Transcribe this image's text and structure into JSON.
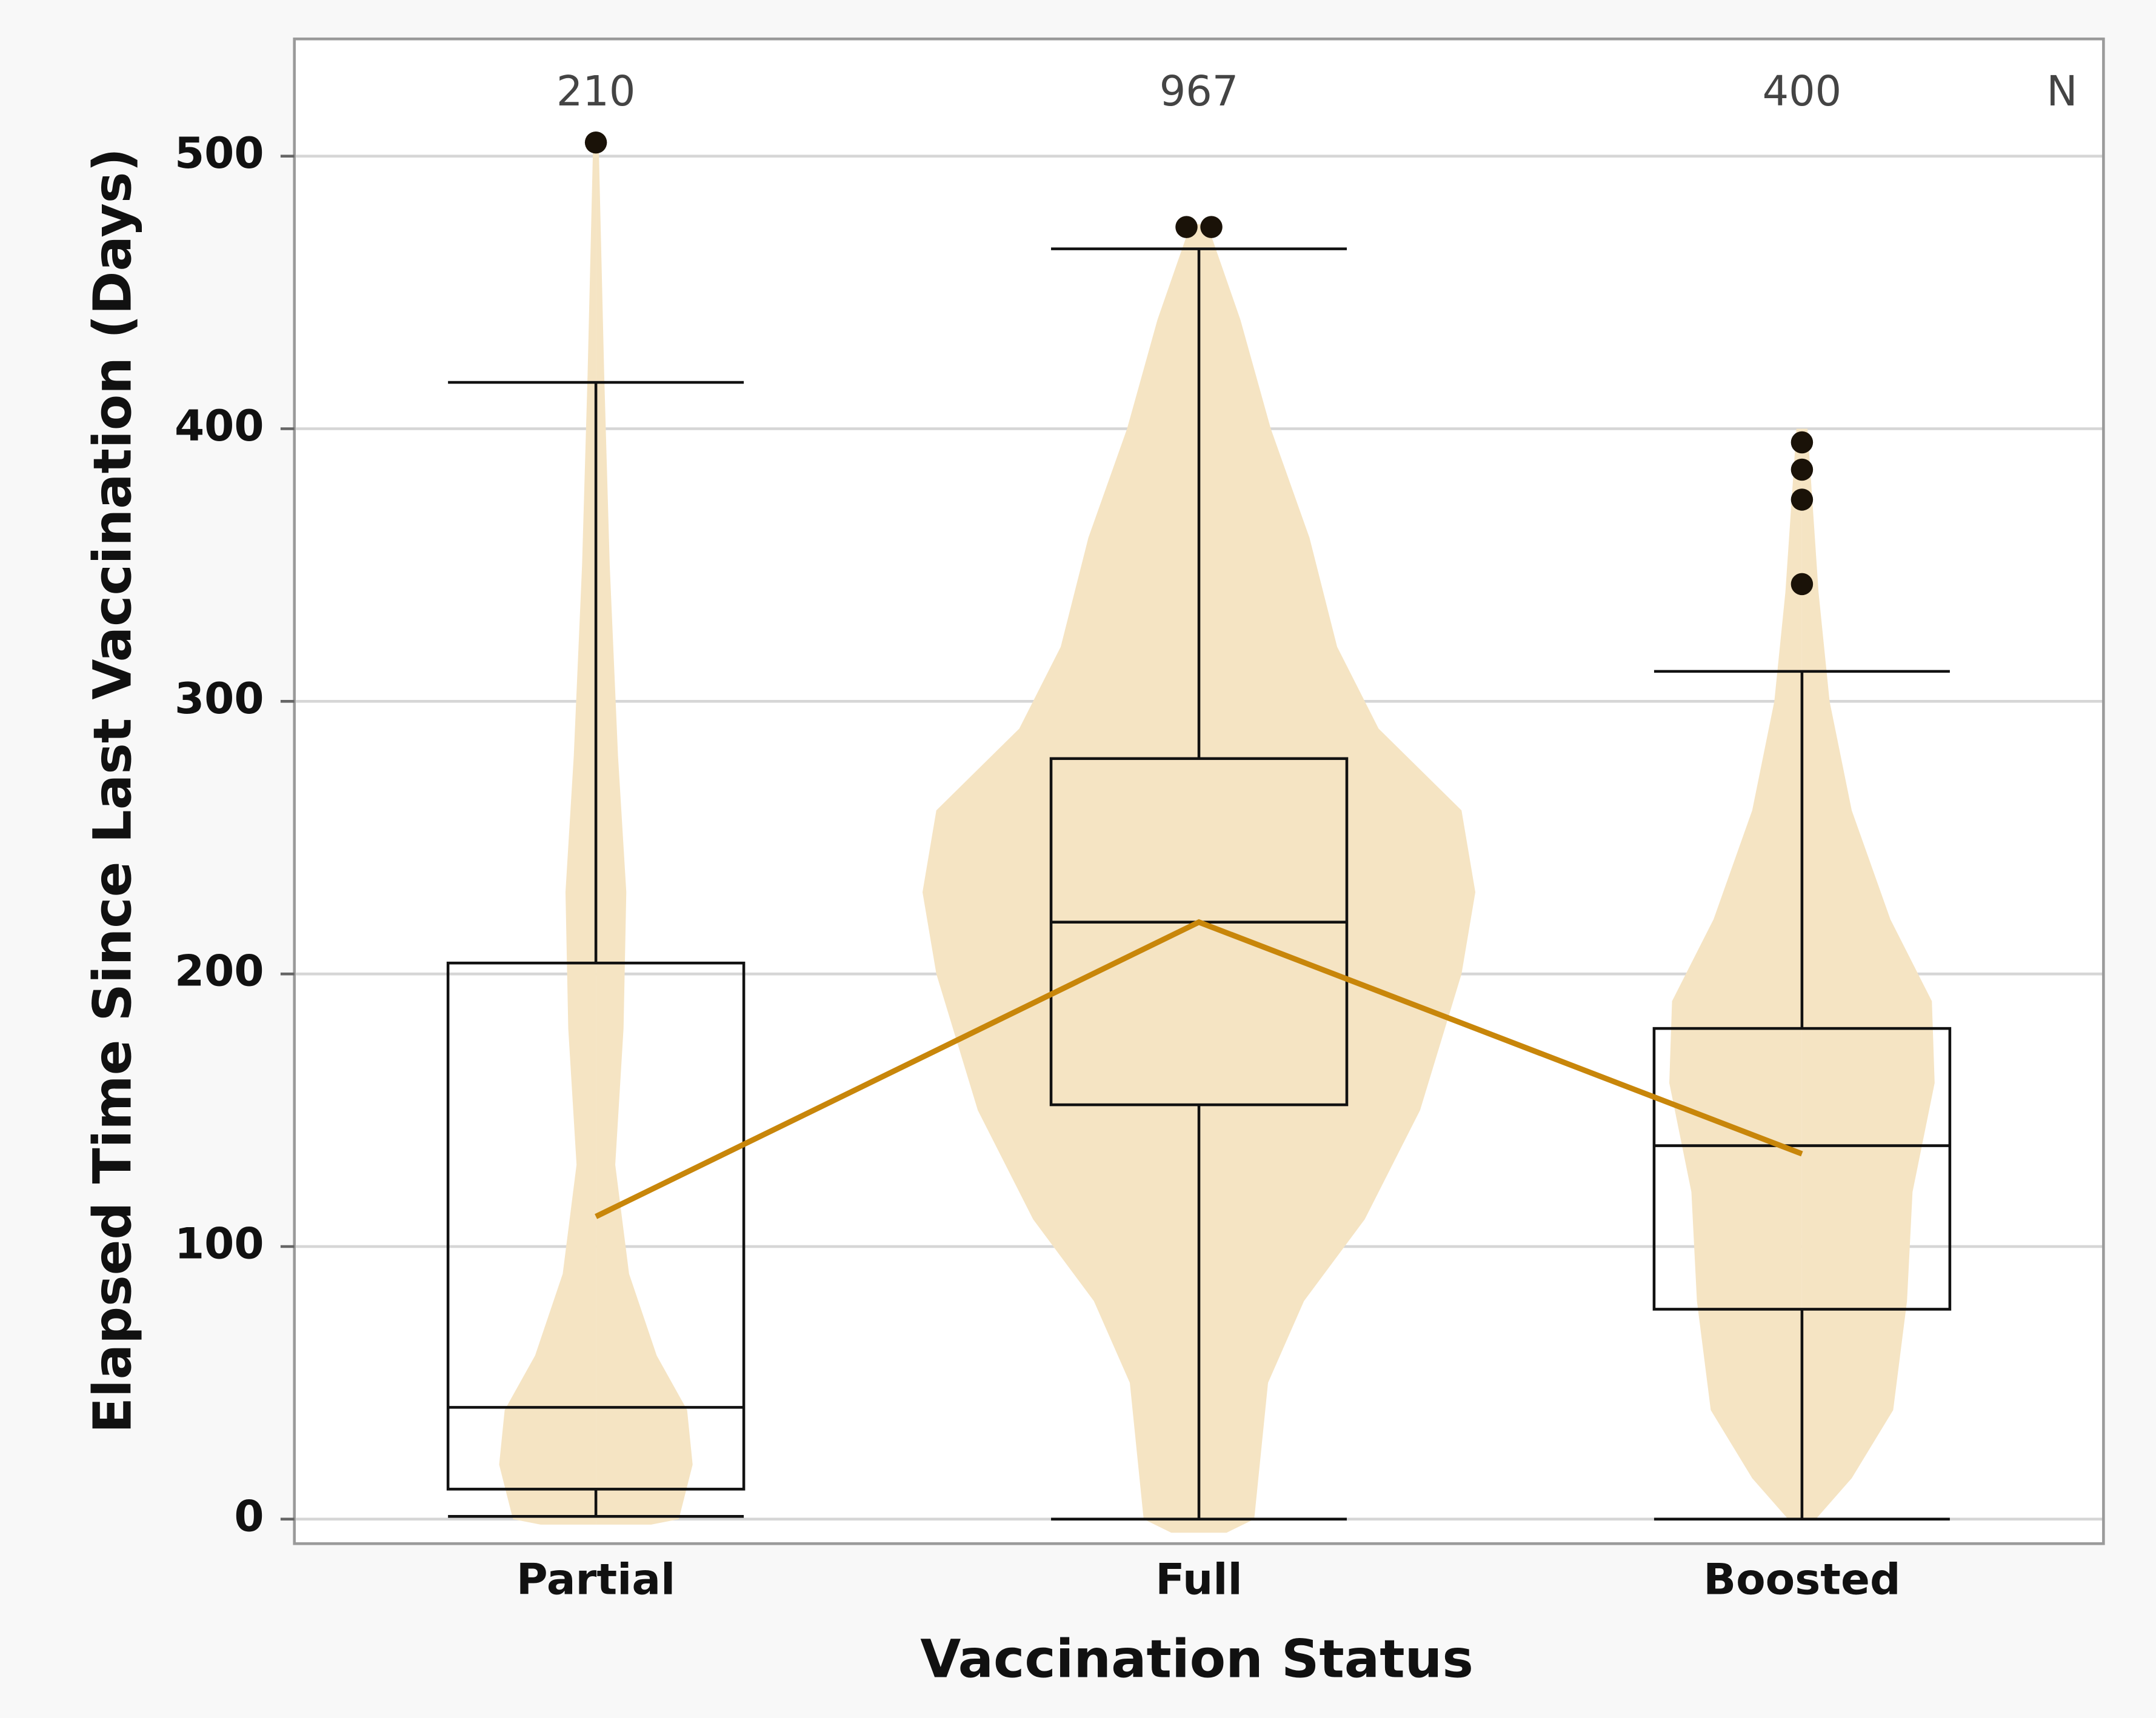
{
  "chart_data": {
    "type": "box",
    "xlabel": "Vaccination Status",
    "ylabel": "Elapsed Time Since Last Vaccination (Days)",
    "categories": [
      "Partial",
      "Full",
      "Boosted"
    ],
    "n_label": "N",
    "n_values": [
      210,
      967,
      400
    ],
    "ylim": [
      -9,
      543
    ],
    "yticks": [
      0,
      100,
      200,
      300,
      400,
      500
    ],
    "grid": true,
    "violin_color": "#f5e4c3",
    "mean_color": "#c8860a",
    "box_color": "#111111",
    "outlier_color": "#1a1208",
    "boxes": [
      {
        "min": 1,
        "q1": 11,
        "median": 41,
        "q3": 204,
        "max": 417,
        "outliers": [
          505
        ],
        "mean": 111,
        "violin_y": [
          -2,
          0,
          20,
          40,
          60,
          90,
          130,
          180,
          230,
          280,
          350,
          420,
          505
        ],
        "violin_width": [
          0.2,
          0.3,
          0.35,
          0.33,
          0.22,
          0.12,
          0.07,
          0.1,
          0.11,
          0.08,
          0.05,
          0.03,
          0.01
        ]
      },
      {
        "min": 0,
        "q1": 152,
        "median": 219,
        "q3": 279,
        "max": 466,
        "outliers": [
          474,
          474
        ],
        "mean": 219,
        "violin_y": [
          -5,
          0,
          20,
          50,
          80,
          110,
          150,
          200,
          230,
          260,
          290,
          320,
          360,
          400,
          440,
          475
        ],
        "violin_width": [
          0.1,
          0.2,
          0.22,
          0.25,
          0.38,
          0.6,
          0.8,
          0.95,
          1.0,
          0.95,
          0.65,
          0.5,
          0.4,
          0.26,
          0.15,
          0.03
        ]
      },
      {
        "min": 0,
        "q1": 77,
        "median": 137,
        "q3": 180,
        "max": 311,
        "outliers": [
          395,
          385,
          374,
          343
        ],
        "mean": 134,
        "violin_y": [
          0,
          15,
          40,
          80,
          120,
          160,
          190,
          220,
          260,
          300,
          340,
          370,
          400
        ],
        "violin_width": [
          0.05,
          0.18,
          0.33,
          0.38,
          0.4,
          0.48,
          0.47,
          0.32,
          0.18,
          0.1,
          0.06,
          0.04,
          0.02
        ]
      }
    ]
  }
}
